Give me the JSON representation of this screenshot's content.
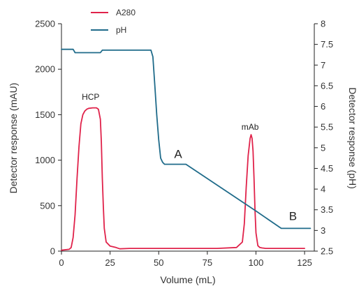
{
  "chart_data": {
    "type": "line",
    "xlabel": "Volume (mL)",
    "ylabel": "Detector response (mAU)",
    "y2label": "Detector response (pH)",
    "xlim": [
      0,
      130
    ],
    "ylim": [
      0,
      2500
    ],
    "y2lim": [
      2.5,
      8
    ],
    "x_ticks": [
      0,
      25,
      50,
      75,
      100,
      125
    ],
    "y_ticks": [
      0,
      500,
      1000,
      1500,
      2000,
      2500
    ],
    "y2_ticks": [
      2.5,
      3,
      3.5,
      4,
      4.5,
      5,
      5.5,
      6,
      6.5,
      7,
      7.5,
      8
    ],
    "grid": false,
    "legend_position": "top-center",
    "colors": {
      "A280": "#e0224a",
      "pH": "#1f6b8a",
      "axis": "#222222"
    },
    "series": [
      {
        "name": "A280",
        "axis": "left",
        "x": [
          0,
          4,
          5,
          6,
          7,
          8,
          9,
          10,
          11,
          12,
          13,
          14,
          16,
          18,
          19,
          20,
          20.5,
          21,
          21.5,
          22,
          23,
          25,
          28,
          30,
          35,
          40,
          50,
          60,
          70,
          80,
          90,
          93,
          94,
          95,
          96,
          97,
          97.5,
          98,
          98.5,
          99,
          99.5,
          100,
          101,
          102,
          103,
          105,
          110,
          115,
          125
        ],
        "values": [
          10,
          20,
          40,
          150,
          400,
          800,
          1150,
          1400,
          1500,
          1540,
          1560,
          1570,
          1575,
          1575,
          1560,
          1450,
          1200,
          800,
          500,
          250,
          100,
          55,
          40,
          25,
          30,
          30,
          30,
          30,
          30,
          30,
          40,
          100,
          300,
          700,
          1050,
          1240,
          1280,
          1240,
          1100,
          800,
          450,
          200,
          60,
          40,
          35,
          30,
          30,
          30,
          30
        ]
      },
      {
        "name": "pH",
        "axis": "right",
        "x": [
          0,
          6,
          7,
          20,
          21,
          46,
          47,
          48,
          49,
          50,
          51,
          52,
          53,
          54,
          55,
          60,
          64,
          100,
          113,
          115,
          128
        ],
        "values": [
          7.38,
          7.38,
          7.3,
          7.3,
          7.36,
          7.36,
          7.2,
          6.5,
          5.8,
          5.2,
          4.75,
          4.65,
          4.6,
          4.6,
          4.6,
          4.6,
          4.6,
          3.47,
          3.05,
          3.05,
          3.05
        ]
      }
    ],
    "annotations": [
      {
        "text": "HCP",
        "x": 15,
        "y": 1665,
        "axis": "left",
        "size": "small"
      },
      {
        "text": "mAb",
        "x": 97,
        "y": 1335,
        "axis": "left",
        "size": "small"
      },
      {
        "text": "A",
        "x": 60,
        "y": 4.75,
        "axis": "right",
        "size": "big"
      },
      {
        "text": "B",
        "x": 119,
        "y": 3.25,
        "axis": "right",
        "size": "big"
      }
    ]
  }
}
